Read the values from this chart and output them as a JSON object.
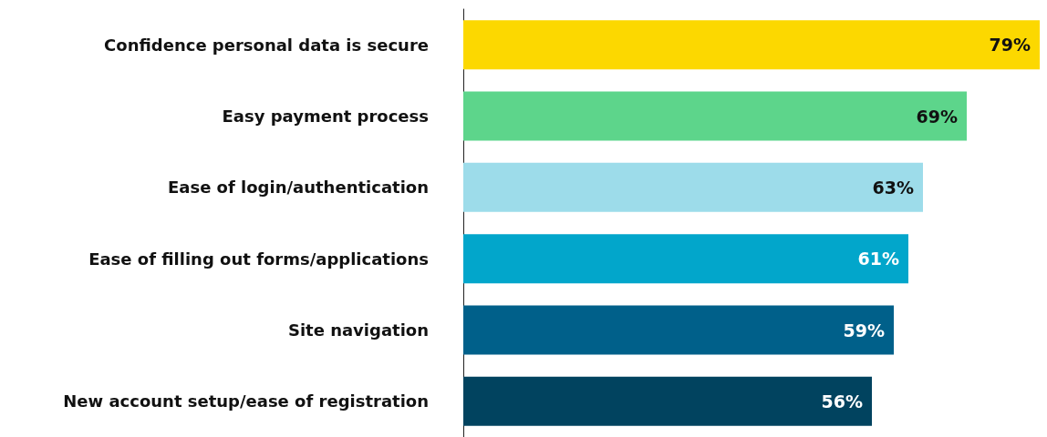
{
  "chart_data": {
    "type": "bar",
    "orientation": "horizontal",
    "categories": [
      "Confidence personal data is secure",
      "Easy payment process",
      "Ease of login/authentication",
      "Ease of filling out forms/applications",
      "Site navigation",
      "New account setup/ease of registration"
    ],
    "values": [
      79,
      69,
      63,
      61,
      59,
      56
    ],
    "colors": [
      "#fcd800",
      "#5dd58b",
      "#9ddcea",
      "#02a6cb",
      "#00608a",
      "#01435f"
    ],
    "value_labels": [
      "79%",
      "69%",
      "63%",
      "61%",
      "59%",
      "56%"
    ]
  }
}
